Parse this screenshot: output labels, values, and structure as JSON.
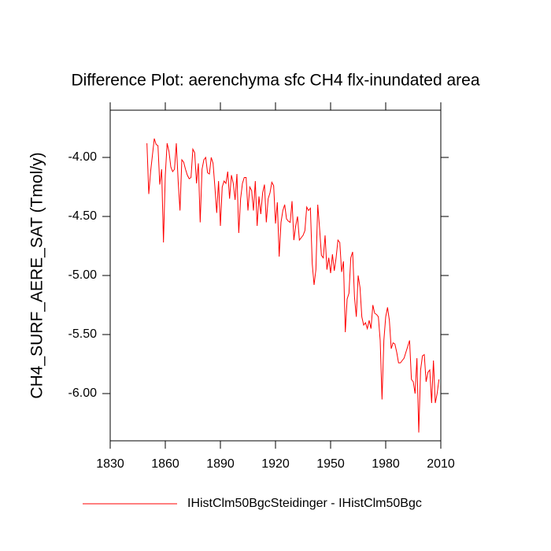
{
  "chart_data": {
    "type": "line",
    "title": "Difference Plot: aerenchyma sfc CH4 flx-inundated area",
    "y_label": "CH4_SURF_AERE_SAT  (Tmol/y)",
    "x": [
      1850,
      1851,
      1852,
      1853,
      1854,
      1855,
      1856,
      1857,
      1858,
      1859,
      1860,
      1861,
      1862,
      1863,
      1864,
      1865,
      1866,
      1867,
      1868,
      1869,
      1870,
      1871,
      1872,
      1873,
      1874,
      1875,
      1876,
      1877,
      1878,
      1879,
      1880,
      1881,
      1882,
      1883,
      1884,
      1885,
      1886,
      1887,
      1888,
      1889,
      1890,
      1891,
      1892,
      1893,
      1894,
      1895,
      1896,
      1897,
      1898,
      1899,
      1900,
      1901,
      1902,
      1903,
      1904,
      1905,
      1906,
      1907,
      1908,
      1909,
      1910,
      1911,
      1912,
      1913,
      1914,
      1915,
      1916,
      1917,
      1918,
      1919,
      1920,
      1921,
      1922,
      1923,
      1924,
      1925,
      1926,
      1927,
      1928,
      1929,
      1930,
      1931,
      1932,
      1933,
      1934,
      1935,
      1936,
      1937,
      1938,
      1939,
      1940,
      1941,
      1942,
      1943,
      1944,
      1945,
      1946,
      1947,
      1948,
      1949,
      1950,
      1951,
      1952,
      1953,
      1954,
      1955,
      1956,
      1957,
      1958,
      1959,
      1960,
      1961,
      1962,
      1963,
      1964,
      1965,
      1966,
      1967,
      1968,
      1969,
      1970,
      1971,
      1972,
      1973,
      1974,
      1975,
      1976,
      1977,
      1978,
      1979,
      1980,
      1981,
      1982,
      1983,
      1984,
      1985,
      1986,
      1987,
      1988,
      1989,
      1990,
      1991,
      1992,
      1993,
      1994,
      1995,
      1996,
      1997,
      1998,
      1999,
      2000,
      2001,
      2002,
      2003,
      2004,
      2005,
      2006,
      2007,
      2008,
      2009
    ],
    "series": [
      {
        "name": "IHistClm50BgcSteidinger - IHistClm50Bgc",
        "color": "#ff0000",
        "values": [
          -3.88,
          -4.31,
          -4.12,
          -3.98,
          -3.84,
          -3.89,
          -3.9,
          -4.23,
          -4.1,
          -4.72,
          -4.15,
          -3.88,
          -3.95,
          -4.08,
          -4.12,
          -4.1,
          -3.88,
          -4.2,
          -4.45,
          -4.02,
          -4.04,
          -4.1,
          -4.15,
          -4.18,
          -4.17,
          -3.93,
          -3.96,
          -4.22,
          -4.05,
          -4.55,
          -4.1,
          -4.02,
          -4.0,
          -4.13,
          -4.14,
          -4.0,
          -4.05,
          -4.25,
          -4.47,
          -4.2,
          -4.58,
          -4.25,
          -4.2,
          -4.22,
          -4.12,
          -4.35,
          -4.15,
          -4.22,
          -4.36,
          -4.14,
          -4.64,
          -4.35,
          -4.22,
          -4.17,
          -4.17,
          -4.45,
          -4.25,
          -4.28,
          -4.45,
          -4.2,
          -4.58,
          -4.33,
          -4.48,
          -4.3,
          -4.23,
          -4.55,
          -4.35,
          -4.3,
          -4.21,
          -4.24,
          -4.56,
          -4.38,
          -4.84,
          -4.55,
          -4.45,
          -4.4,
          -4.52,
          -4.54,
          -4.55,
          -4.37,
          -4.7,
          -4.58,
          -4.5,
          -4.7,
          -4.68,
          -4.66,
          -4.62,
          -4.42,
          -4.45,
          -4.43,
          -4.9,
          -5.08,
          -4.95,
          -4.4,
          -4.6,
          -4.83,
          -4.85,
          -4.66,
          -4.95,
          -4.85,
          -4.98,
          -4.82,
          -4.96,
          -4.85,
          -4.7,
          -4.72,
          -4.97,
          -4.88,
          -5.48,
          -5.2,
          -5.15,
          -4.85,
          -4.8,
          -5.18,
          -5.35,
          -5.0,
          -5.1,
          -5.35,
          -5.42,
          -5.4,
          -5.45,
          -5.38,
          -5.45,
          -5.25,
          -5.32,
          -5.33,
          -5.35,
          -5.55,
          -6.05,
          -5.55,
          -5.35,
          -5.27,
          -5.38,
          -5.62,
          -5.57,
          -5.58,
          -5.65,
          -5.74,
          -5.74,
          -5.72,
          -5.7,
          -5.65,
          -5.6,
          -5.55,
          -5.88,
          -5.9,
          -6.0,
          -5.7,
          -6.33,
          -5.8,
          -5.68,
          -5.67,
          -5.9,
          -5.82,
          -5.8,
          -6.08,
          -5.72,
          -6.08,
          -6.0,
          -5.88
        ]
      }
    ],
    "xlim": [
      1830,
      2010
    ],
    "xticks": [
      1830,
      1860,
      1890,
      1920,
      1950,
      1980,
      2010
    ],
    "ylim": [
      -6.4,
      -3.6
    ],
    "yticks": [
      {
        "value": -6,
        "label": "-6.00"
      },
      {
        "value": -5.5,
        "label": "-5.50"
      },
      {
        "value": -5,
        "label": "-5.00"
      },
      {
        "value": -4.5,
        "label": "-4.50"
      },
      {
        "value": -4,
        "label": "-4.00"
      }
    ]
  }
}
